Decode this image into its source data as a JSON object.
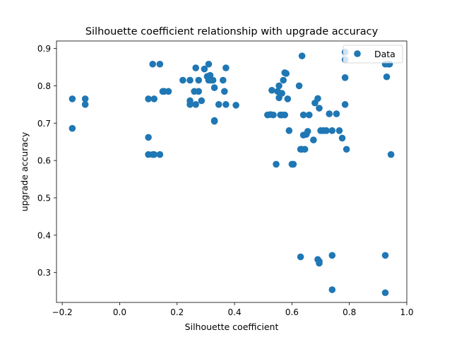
{
  "chart_data": {
    "type": "scatter",
    "title": "Silhouette coefficient relationship with upgrade accuracy",
    "xlabel": "Silhouette coefficient",
    "ylabel": "upgrade accuracy",
    "xlim": [
      -0.22,
      1.0
    ],
    "ylim": [
      0.22,
      0.92
    ],
    "xticks": [
      "−0.2",
      "0.0",
      "0.2",
      "0.4",
      "0.6",
      "0.8",
      "1.0"
    ],
    "xtick_values": [
      -0.2,
      0.0,
      0.2,
      0.4,
      0.6,
      0.8,
      1.0
    ],
    "yticks": [
      "0.3",
      "0.4",
      "0.5",
      "0.6",
      "0.7",
      "0.8",
      "0.9"
    ],
    "ytick_values": [
      0.3,
      0.4,
      0.5,
      0.6,
      0.7,
      0.8,
      0.9
    ],
    "grid": false,
    "legend": {
      "position": "top-right",
      "entries": [
        "Data"
      ]
    },
    "marker_color": "#1f77b4",
    "series": [
      {
        "name": "Data",
        "points": [
          [
            -0.165,
            0.765
          ],
          [
            -0.165,
            0.686
          ],
          [
            -0.12,
            0.765
          ],
          [
            -0.12,
            0.75
          ],
          [
            0.1,
            0.765
          ],
          [
            0.1,
            0.662
          ],
          [
            0.1,
            0.616
          ],
          [
            0.115,
            0.616
          ],
          [
            0.12,
            0.616
          ],
          [
            0.14,
            0.616
          ],
          [
            0.115,
            0.858
          ],
          [
            0.14,
            0.858
          ],
          [
            0.12,
            0.765
          ],
          [
            0.15,
            0.785
          ],
          [
            0.155,
            0.785
          ],
          [
            0.17,
            0.785
          ],
          [
            0.22,
            0.815
          ],
          [
            0.245,
            0.815
          ],
          [
            0.245,
            0.76
          ],
          [
            0.245,
            0.75
          ],
          [
            0.26,
            0.785
          ],
          [
            0.265,
            0.75
          ],
          [
            0.265,
            0.848
          ],
          [
            0.275,
            0.785
          ],
          [
            0.275,
            0.815
          ],
          [
            0.285,
            0.76
          ],
          [
            0.295,
            0.845
          ],
          [
            0.305,
            0.825
          ],
          [
            0.31,
            0.815
          ],
          [
            0.31,
            0.858
          ],
          [
            0.315,
            0.828
          ],
          [
            0.32,
            0.815
          ],
          [
            0.325,
            0.815
          ],
          [
            0.33,
            0.795
          ],
          [
            0.33,
            0.707
          ],
          [
            0.33,
            0.705
          ],
          [
            0.345,
            0.75
          ],
          [
            0.36,
            0.815
          ],
          [
            0.365,
            0.785
          ],
          [
            0.37,
            0.75
          ],
          [
            0.37,
            0.848
          ],
          [
            0.405,
            0.748
          ],
          [
            0.515,
            0.722
          ],
          [
            0.525,
            0.723
          ],
          [
            0.53,
            0.788
          ],
          [
            0.535,
            0.722
          ],
          [
            0.545,
            0.59
          ],
          [
            0.55,
            0.785
          ],
          [
            0.555,
            0.768
          ],
          [
            0.555,
            0.8
          ],
          [
            0.56,
            0.722
          ],
          [
            0.565,
            0.78
          ],
          [
            0.565,
            0.722
          ],
          [
            0.57,
            0.815
          ],
          [
            0.575,
            0.835
          ],
          [
            0.575,
            0.722
          ],
          [
            0.58,
            0.833
          ],
          [
            0.585,
            0.765
          ],
          [
            0.59,
            0.68
          ],
          [
            0.6,
            0.59
          ],
          [
            0.605,
            0.59
          ],
          [
            0.625,
            0.8
          ],
          [
            0.63,
            0.63
          ],
          [
            0.635,
            0.88
          ],
          [
            0.635,
            0.63
          ],
          [
            0.64,
            0.722
          ],
          [
            0.64,
            0.668
          ],
          [
            0.645,
            0.63
          ],
          [
            0.65,
            0.67
          ],
          [
            0.655,
            0.678
          ],
          [
            0.66,
            0.722
          ],
          [
            0.675,
            0.655
          ],
          [
            0.68,
            0.754
          ],
          [
            0.69,
            0.766
          ],
          [
            0.695,
            0.74
          ],
          [
            0.7,
            0.68
          ],
          [
            0.71,
            0.68
          ],
          [
            0.72,
            0.68
          ],
          [
            0.73,
            0.725
          ],
          [
            0.74,
            0.68
          ],
          [
            0.755,
            0.725
          ],
          [
            0.765,
            0.68
          ],
          [
            0.775,
            0.66
          ],
          [
            0.785,
            0.75
          ],
          [
            0.785,
            0.822
          ],
          [
            0.785,
            0.87
          ],
          [
            0.785,
            0.89
          ],
          [
            0.79,
            0.63
          ],
          [
            0.925,
            0.858
          ],
          [
            0.93,
            0.824
          ],
          [
            0.935,
            0.858
          ],
          [
            0.94,
            0.858
          ],
          [
            0.945,
            0.616
          ],
          [
            0.63,
            0.342
          ],
          [
            0.69,
            0.335
          ],
          [
            0.695,
            0.33
          ],
          [
            0.695,
            0.325
          ],
          [
            0.74,
            0.346
          ],
          [
            0.74,
            0.254
          ],
          [
            0.925,
            0.346
          ],
          [
            0.925,
            0.246
          ]
        ]
      }
    ]
  }
}
